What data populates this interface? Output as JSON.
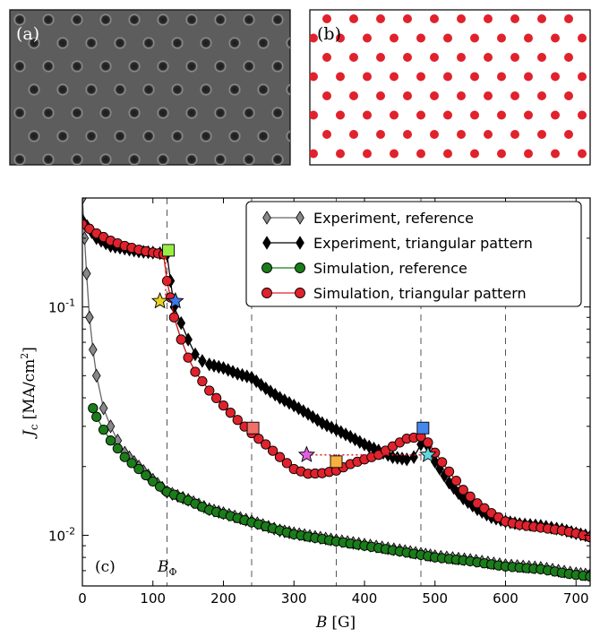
{
  "panel_a": {
    "label": "(a)",
    "caption_icon": "sem-micrograph-hole-lattice"
  },
  "panel_b": {
    "label": "(b)",
    "dot_color": "#e0222c"
  },
  "chart_data": {
    "type": "line",
    "panel_label": "(c)",
    "xlabel_var": "B",
    "xlabel_unit": "[G]",
    "ylabel_var": "J",
    "ylabel_sub": "c",
    "ylabel_unit": "[MA/cm",
    "ylabel_unit_sup": "2",
    "ylabel_unit_close": "]",
    "y_scale": "log",
    "xlim": [
      0,
      720
    ],
    "ylim": [
      0.006,
      0.3
    ],
    "x_ticks": [
      0,
      100,
      200,
      300,
      400,
      500,
      600,
      700
    ],
    "y_ticks": [
      {
        "value": 0.1,
        "base": "10",
        "exp": "-1"
      },
      {
        "value": 0.01,
        "base": "10",
        "exp": "-2"
      }
    ],
    "vlines": [
      120,
      240,
      360,
      480,
      600
    ],
    "vline_label": {
      "x": 120,
      "var": "B",
      "sub": "Φ"
    },
    "legend_position": "top-right",
    "series": [
      {
        "name": "Experiment, reference",
        "color": "#888888",
        "marker": "diamond",
        "x": [
          0,
          3,
          6,
          10,
          15,
          20,
          30,
          40,
          50,
          60,
          80,
          100,
          120,
          150,
          180,
          200,
          240,
          280,
          300,
          360,
          400,
          450,
          480,
          500,
          550,
          600,
          650,
          700,
          720
        ],
        "y": [
          0.3,
          0.2,
          0.14,
          0.09,
          0.065,
          0.05,
          0.036,
          0.03,
          0.026,
          0.023,
          0.02,
          0.0175,
          0.0155,
          0.0143,
          0.013,
          0.0125,
          0.0115,
          0.0105,
          0.0102,
          0.0095,
          0.0091,
          0.0086,
          0.0083,
          0.0081,
          0.0078,
          0.0074,
          0.0072,
          0.0068,
          0.0067
        ]
      },
      {
        "name": "Experiment, triangular pattern",
        "color": "#000000",
        "marker": "diamond",
        "x": [
          0,
          20,
          40,
          60,
          80,
          100,
          110,
          120,
          125,
          130,
          140,
          150,
          160,
          170,
          180,
          200,
          220,
          240,
          260,
          280,
          300,
          320,
          340,
          360,
          380,
          400,
          420,
          440,
          460,
          470,
          480,
          490,
          500,
          520,
          540,
          560,
          580,
          600,
          620,
          650,
          680,
          700,
          720
        ],
        "y": [
          0.24,
          0.2,
          0.185,
          0.18,
          0.175,
          0.173,
          0.172,
          0.17,
          0.13,
          0.1,
          0.085,
          0.072,
          0.062,
          0.058,
          0.056,
          0.054,
          0.051,
          0.049,
          0.044,
          0.04,
          0.037,
          0.034,
          0.031,
          0.029,
          0.027,
          0.025,
          0.0235,
          0.022,
          0.0215,
          0.022,
          0.025,
          0.0245,
          0.021,
          0.017,
          0.0145,
          0.013,
          0.012,
          0.0115,
          0.0112,
          0.011,
          0.0106,
          0.0102,
          0.0099
        ]
      },
      {
        "name": "Simulation, reference",
        "color": "#1a7d1a",
        "marker": "circle",
        "x": [
          15,
          20,
          30,
          40,
          50,
          60,
          80,
          100,
          120,
          150,
          180,
          200,
          240,
          280,
          300,
          360,
          400,
          450,
          480,
          500,
          550,
          600,
          650,
          700,
          720
        ],
        "y": [
          0.036,
          0.033,
          0.029,
          0.026,
          0.024,
          0.022,
          0.0195,
          0.0172,
          0.0155,
          0.0142,
          0.0129,
          0.0124,
          0.0114,
          0.0105,
          0.0101,
          0.0094,
          0.009,
          0.0085,
          0.0082,
          0.008,
          0.0077,
          0.0073,
          0.0071,
          0.0067,
          0.0066
        ]
      },
      {
        "name": "Simulation, triangular pattern",
        "color": "#e0222c",
        "marker": "circle",
        "x": [
          0,
          10,
          20,
          40,
          60,
          80,
          100,
          115,
          120,
          125,
          130,
          140,
          150,
          160,
          180,
          200,
          220,
          240,
          260,
          280,
          300,
          320,
          340,
          360,
          380,
          400,
          420,
          440,
          460,
          480,
          490,
          500,
          520,
          540,
          560,
          580,
          600,
          620,
          650,
          680,
          700,
          720
        ],
        "y": [
          0.23,
          0.22,
          0.21,
          0.195,
          0.185,
          0.178,
          0.173,
          0.17,
          0.13,
          0.11,
          0.09,
          0.072,
          0.06,
          0.052,
          0.043,
          0.037,
          0.032,
          0.028,
          0.025,
          0.022,
          0.0195,
          0.0186,
          0.0187,
          0.0192,
          0.0205,
          0.0215,
          0.0225,
          0.0245,
          0.0265,
          0.027,
          0.0255,
          0.023,
          0.019,
          0.0158,
          0.0138,
          0.0125,
          0.0115,
          0.0111,
          0.0108,
          0.0105,
          0.0102,
          0.0098
        ]
      }
    ],
    "highlight_markers": [
      {
        "shape": "square",
        "x": 122,
        "y": 0.177,
        "color": "#98ee44"
      },
      {
        "shape": "star",
        "x": 110,
        "y": 0.106,
        "color": "#e8d020"
      },
      {
        "shape": "star",
        "x": 132,
        "y": 0.106,
        "color": "#3c78e8"
      },
      {
        "shape": "square",
        "x": 242,
        "y": 0.0295,
        "color": "#f07068"
      },
      {
        "shape": "star",
        "x": 318,
        "y": 0.0225,
        "color": "#e060e0"
      },
      {
        "shape": "square",
        "x": 360,
        "y": 0.021,
        "color": "#f8b040"
      },
      {
        "shape": "square",
        "x": 483,
        "y": 0.0295,
        "color": "#4488ee"
      },
      {
        "shape": "star",
        "x": 490,
        "y": 0.0225,
        "color": "#60d8e0"
      }
    ],
    "dotted_segments": [
      {
        "x": [
          110,
          118
        ],
        "y": [
          0.172,
          0.172
        ]
      },
      {
        "x": [
          118,
          118
        ],
        "y": [
          0.172,
          0.106
        ]
      },
      {
        "x": [
          318,
          490
        ],
        "y": [
          0.0225,
          0.0225
        ]
      }
    ]
  }
}
